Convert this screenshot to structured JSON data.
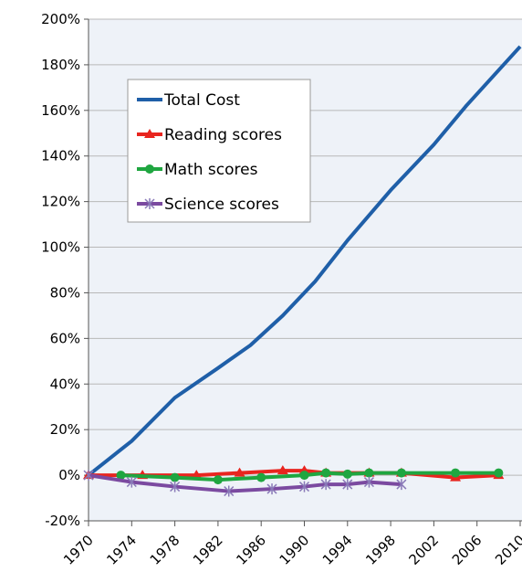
{
  "chart_data": {
    "type": "line",
    "series": [
      {
        "name": "Total Cost",
        "color": "#1f5fa8",
        "marker": "none",
        "x": [
          1970,
          1974,
          1978,
          1982,
          1985,
          1988,
          1991,
          1994,
          1998,
          2002,
          2005,
          2010
        ],
        "values": [
          0,
          15,
          34,
          47,
          57,
          70,
          85,
          103,
          125,
          145,
          162,
          188
        ]
      },
      {
        "name": "Reading scores",
        "color": "#e8251f",
        "marker": "triangle",
        "x": [
          1970,
          1975,
          1980,
          1984,
          1988,
          1990,
          1992,
          1996,
          1999,
          2004,
          2008
        ],
        "values": [
          0,
          0,
          0,
          1,
          2,
          2,
          1,
          1,
          1,
          -1,
          0
        ]
      },
      {
        "name": "Math scores",
        "color": "#1fa640",
        "marker": "circle",
        "x": [
          1973,
          1978,
          1982,
          1986,
          1990,
          1992,
          1994,
          1996,
          1999,
          2004,
          2008
        ],
        "values": [
          0,
          -1,
          -2,
          -1,
          0,
          1,
          0.5,
          1,
          1,
          1,
          1
        ]
      },
      {
        "name": "Science scores",
        "color": "#7b4aa0",
        "marker": "star",
        "x": [
          1970,
          1974,
          1978,
          1983,
          1987,
          1990,
          1992,
          1994,
          1996,
          1999
        ],
        "values": [
          0,
          -3,
          -5,
          -7,
          -6,
          -5,
          -4,
          -4,
          -3,
          -4
        ]
      }
    ],
    "xlim": [
      1970,
      2010
    ],
    "xticks": [
      1970,
      1974,
      1978,
      1982,
      1986,
      1990,
      1994,
      1998,
      2002,
      2006,
      2010
    ],
    "ylim": [
      -20,
      200
    ],
    "yticks": [
      {
        "value": -20,
        "label": "-20%"
      },
      {
        "value": 0,
        "label": "0%"
      },
      {
        "value": 20,
        "label": "20%"
      },
      {
        "value": 40,
        "label": "40%"
      },
      {
        "value": 60,
        "label": "60%"
      },
      {
        "value": 80,
        "label": "80%"
      },
      {
        "value": 100,
        "label": "100%"
      },
      {
        "value": 120,
        "label": "120%"
      },
      {
        "value": 140,
        "label": "140%"
      },
      {
        "value": 160,
        "label": "160%"
      },
      {
        "value": 180,
        "label": "180%"
      },
      {
        "value": 200,
        "label": "200%"
      }
    ],
    "grid": true,
    "legend": "upper left"
  }
}
